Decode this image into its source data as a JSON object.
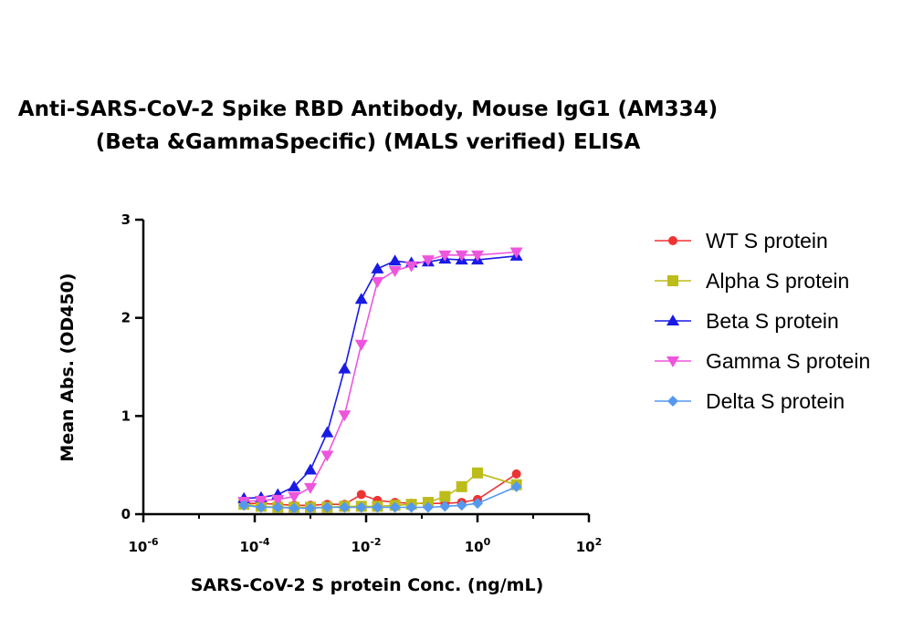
{
  "chart_data": {
    "type": "scatter",
    "title_lines": [
      "Anti-SARS-CoV-2 Spike RBD Antibody, Mouse IgG1 (AM334)",
      "(Beta &GammaSpecific) (MALS verified) ELISA"
    ],
    "xlabel": "SARS-CoV-2 S protein Conc. (ng/mL)",
    "ylabel": "Mean Abs. (OD450)",
    "x_scale": "log",
    "xlim": [
      1e-06,
      100
    ],
    "ylim": [
      0,
      3
    ],
    "x_ticks": [
      {
        "value": 1e-06,
        "base": "10",
        "exp": "-6"
      },
      {
        "value": 0.0001,
        "base": "10",
        "exp": "-4"
      },
      {
        "value": 0.01,
        "base": "10",
        "exp": "-2"
      },
      {
        "value": 1,
        "base": "10",
        "exp": "0"
      },
      {
        "value": 100,
        "base": "10",
        "exp": "2"
      }
    ],
    "y_ticks": [
      {
        "value": 0,
        "label": "0"
      },
      {
        "value": 1,
        "label": "1"
      },
      {
        "value": 2,
        "label": "2"
      },
      {
        "value": 3,
        "label": "3"
      }
    ],
    "grid": false,
    "legend_position": "right",
    "x": [
      6.4e-05,
      0.00013,
      0.00026,
      0.00051,
      0.001,
      0.002,
      0.0041,
      0.0082,
      0.016,
      0.033,
      0.065,
      0.13,
      0.26,
      0.52,
      1.0,
      5.0
    ],
    "series": [
      {
        "name": "WT S protein",
        "marker": "circle",
        "color": "#ee3333",
        "values": [
          0.11,
          0.11,
          0.1,
          0.09,
          0.09,
          0.1,
          0.1,
          0.2,
          0.14,
          0.12,
          0.11,
          0.11,
          0.11,
          0.12,
          0.15,
          0.41
        ]
      },
      {
        "name": "Alpha S protein",
        "marker": "square",
        "color": "#bcbc1a",
        "values": [
          0.1,
          0.08,
          0.07,
          0.07,
          0.07,
          0.07,
          0.08,
          0.08,
          0.08,
          0.09,
          0.1,
          0.12,
          0.18,
          0.28,
          0.42,
          0.3
        ]
      },
      {
        "name": "Beta S protein",
        "marker": "triangle-up",
        "color": "#1a1ae6",
        "values": [
          0.16,
          0.17,
          0.2,
          0.28,
          0.45,
          0.83,
          1.48,
          2.19,
          2.5,
          2.58,
          2.56,
          2.57,
          2.6,
          2.59,
          2.59,
          2.63
        ]
      },
      {
        "name": "Gamma S protein",
        "marker": "triangle-down",
        "color": "#ee55dd",
        "values": [
          0.13,
          0.14,
          0.15,
          0.18,
          0.27,
          0.6,
          1.01,
          1.73,
          2.37,
          2.48,
          2.53,
          2.59,
          2.64,
          2.64,
          2.64,
          2.67
        ]
      },
      {
        "name": "Delta S protein",
        "marker": "diamond",
        "color": "#5599ee",
        "values": [
          0.09,
          0.07,
          0.07,
          0.06,
          0.06,
          0.07,
          0.07,
          0.07,
          0.07,
          0.07,
          0.07,
          0.07,
          0.08,
          0.09,
          0.11,
          0.28
        ]
      }
    ]
  }
}
